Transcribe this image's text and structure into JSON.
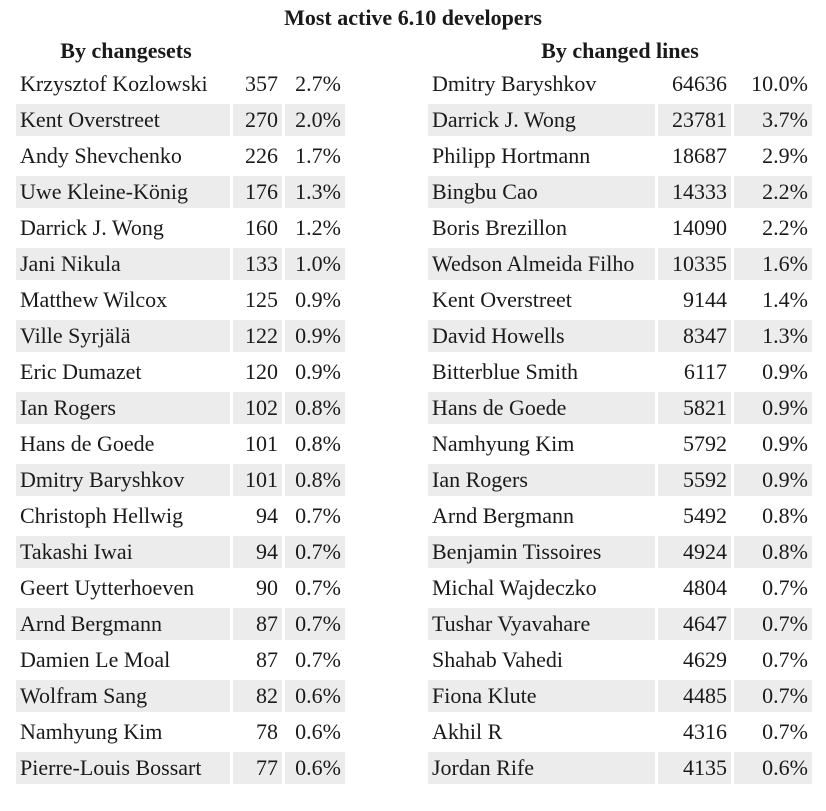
{
  "title": "Most active 6.10 developers",
  "by_changesets": {
    "heading": "By changesets",
    "rows": [
      {
        "name": "Krzysztof Kozlowski",
        "count": "357",
        "pct": "2.7%"
      },
      {
        "name": "Kent Overstreet",
        "count": "270",
        "pct": "2.0%"
      },
      {
        "name": "Andy Shevchenko",
        "count": "226",
        "pct": "1.7%"
      },
      {
        "name": "Uwe Kleine-König",
        "count": "176",
        "pct": "1.3%"
      },
      {
        "name": "Darrick J. Wong",
        "count": "160",
        "pct": "1.2%"
      },
      {
        "name": "Jani Nikula",
        "count": "133",
        "pct": "1.0%"
      },
      {
        "name": "Matthew Wilcox",
        "count": "125",
        "pct": "0.9%"
      },
      {
        "name": "Ville Syrjälä",
        "count": "122",
        "pct": "0.9%"
      },
      {
        "name": "Eric Dumazet",
        "count": "120",
        "pct": "0.9%"
      },
      {
        "name": "Ian Rogers",
        "count": "102",
        "pct": "0.8%"
      },
      {
        "name": "Hans de Goede",
        "count": "101",
        "pct": "0.8%"
      },
      {
        "name": "Dmitry Baryshkov",
        "count": "101",
        "pct": "0.8%"
      },
      {
        "name": "Christoph Hellwig",
        "count": "94",
        "pct": "0.7%"
      },
      {
        "name": "Takashi Iwai",
        "count": "94",
        "pct": "0.7%"
      },
      {
        "name": "Geert Uytterhoeven",
        "count": "90",
        "pct": "0.7%"
      },
      {
        "name": "Arnd Bergmann",
        "count": "87",
        "pct": "0.7%"
      },
      {
        "name": "Damien Le Moal",
        "count": "87",
        "pct": "0.7%"
      },
      {
        "name": "Wolfram Sang",
        "count": "82",
        "pct": "0.6%"
      },
      {
        "name": "Namhyung Kim",
        "count": "78",
        "pct": "0.6%"
      },
      {
        "name": "Pierre-Louis Bossart",
        "count": "77",
        "pct": "0.6%"
      }
    ]
  },
  "by_changed_lines": {
    "heading": "By changed lines",
    "rows": [
      {
        "name": "Dmitry Baryshkov",
        "count": "64636",
        "pct": "10.0%"
      },
      {
        "name": "Darrick J. Wong",
        "count": "23781",
        "pct": "3.7%"
      },
      {
        "name": "Philipp Hortmann",
        "count": "18687",
        "pct": "2.9%"
      },
      {
        "name": "Bingbu Cao",
        "count": "14333",
        "pct": "2.2%"
      },
      {
        "name": "Boris Brezillon",
        "count": "14090",
        "pct": "2.2%"
      },
      {
        "name": "Wedson Almeida Filho",
        "count": "10335",
        "pct": "1.6%"
      },
      {
        "name": "Kent Overstreet",
        "count": "9144",
        "pct": "1.4%"
      },
      {
        "name": "David Howells",
        "count": "8347",
        "pct": "1.3%"
      },
      {
        "name": "Bitterblue Smith",
        "count": "6117",
        "pct": "0.9%"
      },
      {
        "name": "Hans de Goede",
        "count": "5821",
        "pct": "0.9%"
      },
      {
        "name": "Namhyung Kim",
        "count": "5792",
        "pct": "0.9%"
      },
      {
        "name": "Ian Rogers",
        "count": "5592",
        "pct": "0.9%"
      },
      {
        "name": "Arnd Bergmann",
        "count": "5492",
        "pct": "0.8%"
      },
      {
        "name": "Benjamin Tissoires",
        "count": "4924",
        "pct": "0.8%"
      },
      {
        "name": "Michal Wajdeczko",
        "count": "4804",
        "pct": "0.7%"
      },
      {
        "name": "Tushar Vyavahare",
        "count": "4647",
        "pct": "0.7%"
      },
      {
        "name": "Shahab Vahedi",
        "count": "4629",
        "pct": "0.7%"
      },
      {
        "name": "Fiona Klute",
        "count": "4485",
        "pct": "0.7%"
      },
      {
        "name": "Akhil R",
        "count": "4316",
        "pct": "0.7%"
      },
      {
        "name": "Jordan Rife",
        "count": "4135",
        "pct": "0.6%"
      }
    ]
  }
}
